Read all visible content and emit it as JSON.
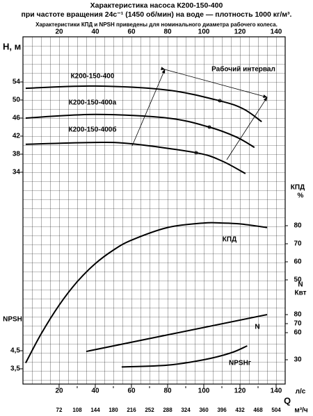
{
  "chart_data": {
    "type": "line",
    "title": [
      "Характеристика насоса К200-150-400",
      "при частоте вращения 24с⁻¹ (1450 об/мин) на воде — плотность 1000 кг/м³."
    ],
    "subtitle": "Характеристики КПД и NPSH приведены для номинального диаметра рабочего колеса.",
    "annotation": "Рабочий интервал",
    "xlabel": "Q",
    "x_unit": "л/с",
    "xlim": [
      0,
      145
    ],
    "xticks": [
      20,
      40,
      60,
      80,
      100,
      120,
      140
    ],
    "x2_unit": "м³/ч",
    "x2lim": [
      0,
      522
    ],
    "x2ticks": [
      72,
      108,
      144,
      180,
      216,
      252,
      288,
      324,
      360,
      396,
      432,
      468,
      504
    ],
    "ylabel": "H, м",
    "ylim": [
      -12.92,
      64
    ],
    "yticks": [
      54,
      50,
      46,
      42,
      38,
      34
    ],
    "y2label": [
      "КПД",
      "%"
    ],
    "y2lim": [
      -7.69,
      184.62
    ],
    "y2ticks": [
      80,
      70,
      60,
      50
    ],
    "y3label": [
      "N",
      "Квт"
    ],
    "y3lim": [
      3.08,
      387.69
    ],
    "y3ticks": [
      80,
      70,
      60,
      30
    ],
    "y4label": "NPSH",
    "y4lim": [
      2.654,
      21.885
    ],
    "y4ticks": [
      {
        "value": 4.5,
        "label": "4,5"
      },
      {
        "value": 3.5,
        "label": "3,5"
      }
    ],
    "grid": true,
    "series": [
      {
        "name": "К200-150-400",
        "color": "#000000",
        "x": [
          1.5,
          40,
          80,
          109,
          122,
          132
        ],
        "values": [
          52.6,
          53.1,
          52.2,
          49.8,
          48,
          45.2
        ]
      },
      {
        "name": "К200-150-400а",
        "color": "#000000",
        "x": [
          1.5,
          40,
          80,
          103,
          118,
          128
        ],
        "values": [
          46,
          46.8,
          46,
          44,
          41.8,
          39.5
        ]
      },
      {
        "name": "К200-150-400б",
        "color": "#000000",
        "x": [
          1.5,
          40,
          60,
          96,
          110,
          123
        ],
        "values": [
          40.2,
          40.6,
          40.3,
          38.3,
          36.5,
          33.7
        ]
      },
      {
        "name": "КПД",
        "color": "#000000",
        "axis": "y2",
        "x": [
          1.5,
          10,
          20,
          30,
          40,
          50,
          60,
          80,
          100,
          110,
          120,
          135
        ],
        "values": [
          4,
          20,
          36,
          49,
          59,
          66.5,
          72,
          79,
          81.5,
          81.5,
          81,
          79
        ]
      },
      {
        "name": "N",
        "color": "#000000",
        "axis": "y3",
        "x": [
          35,
          135
        ],
        "values": [
          39.2,
          80
        ]
      },
      {
        "name": "NPSHг",
        "color": "#000000",
        "axis": "y4",
        "x": [
          54.6,
          80,
          100,
          115,
          124
        ],
        "values": [
          3.6,
          3.7,
          4.0,
          4.38,
          4.77
        ]
      }
    ]
  }
}
